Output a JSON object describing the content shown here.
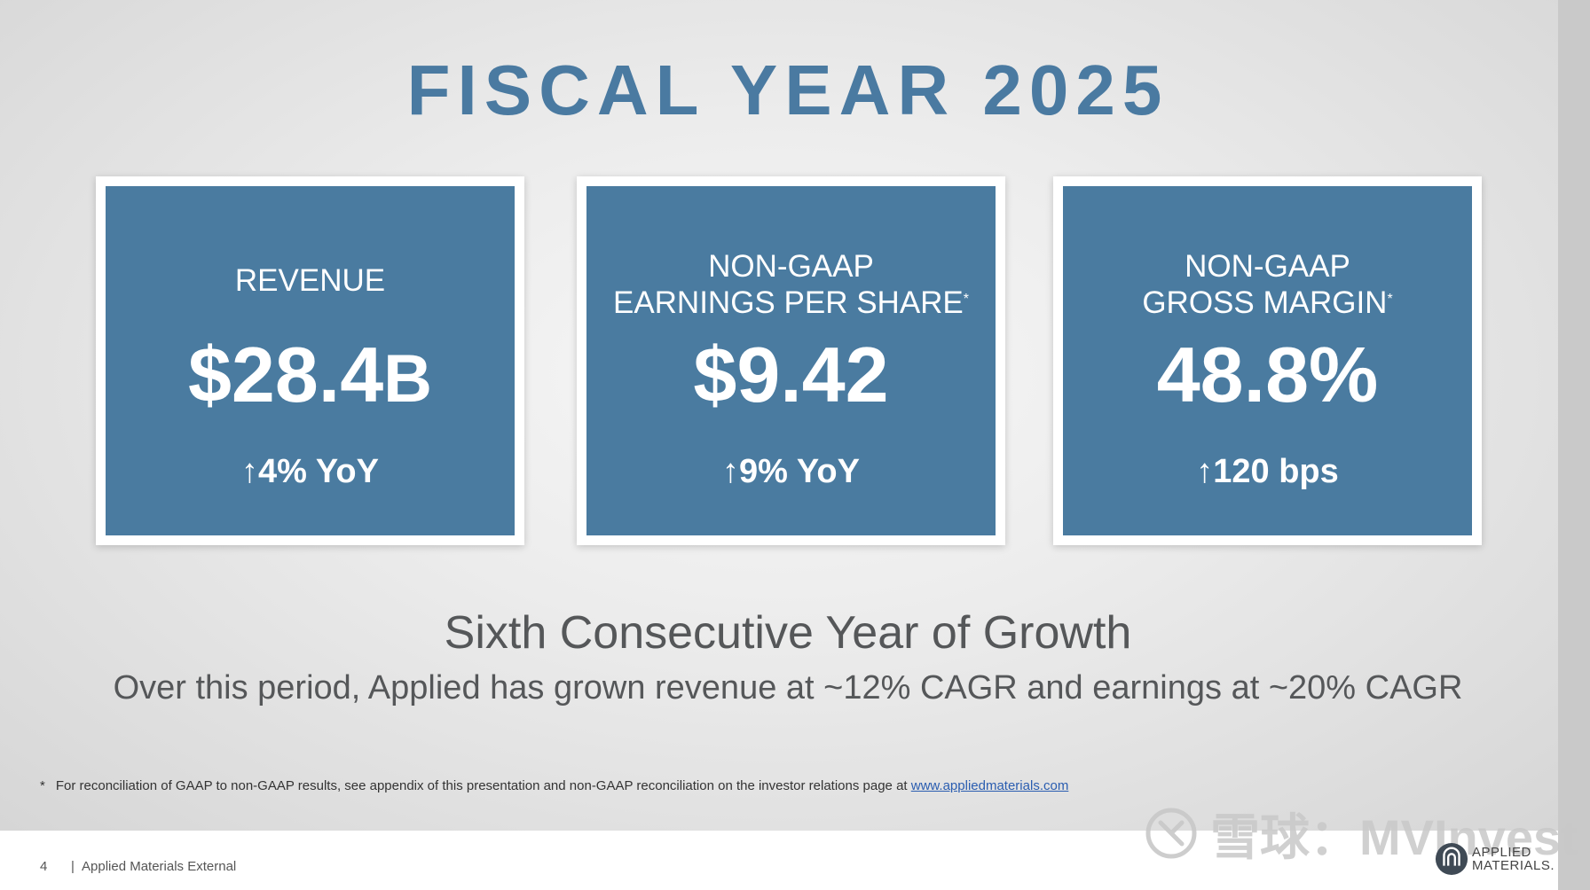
{
  "slide": {
    "title": "FISCAL YEAR 2025",
    "cards": [
      {
        "label_line1": "REVENUE",
        "value_main": "$28.4",
        "value_unit": "B",
        "arrow": "↑",
        "change": "4% YoY"
      },
      {
        "label_line1": "NON-GAAP",
        "label_line2": "EARNINGS PER SHARE",
        "label_mark": "*",
        "value_main": "$9.42",
        "arrow": "↑",
        "change": "9% YoY"
      },
      {
        "label_line1": "NON-GAAP",
        "label_line2": "GROSS MARGIN",
        "label_mark": "*",
        "value_main": "48.8%",
        "arrow": "↑",
        "change": "120 bps"
      }
    ],
    "headline": "Sixth Consecutive Year of Growth",
    "subline": "Over this period, Applied has grown revenue at ~12% CAGR and earnings at ~20% CAGR",
    "footnote": {
      "mark": "*",
      "text": "For reconciliation of GAAP to non-GAAP results, see appendix of this presentation and non-GAAP reconciliation on the investor relations page at ",
      "link": "www.appliedmaterials.com"
    }
  },
  "footer": {
    "page_number": "4",
    "separator": "|",
    "label": "Applied Materials External"
  },
  "watermark": {
    "text": "雪球：MVInvest"
  },
  "logo": {
    "line1": "APPLIED",
    "line2": "MATERIALS."
  },
  "colors": {
    "accent": "#4a7aa1",
    "card": "#4a7ba0",
    "text": "#555759"
  }
}
